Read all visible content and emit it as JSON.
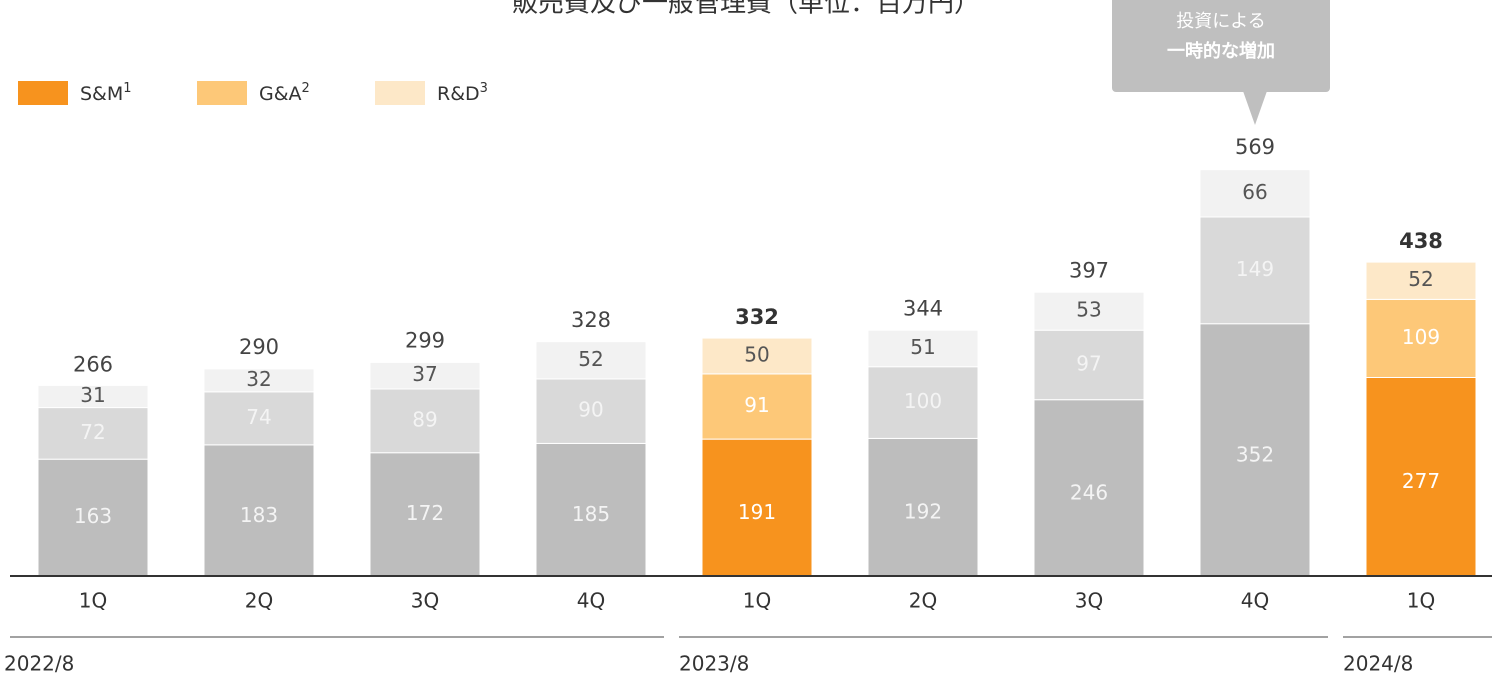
{
  "chart_data": {
    "type": "stacked_bar",
    "title": "販売費及び一般管理費（単位：百万円）",
    "categories": [
      "1Q",
      "2Q",
      "3Q",
      "4Q",
      "1Q",
      "2Q",
      "3Q",
      "4Q",
      "1Q"
    ],
    "groups": [
      {
        "label": "2022/8",
        "start": 0,
        "end": 3
      },
      {
        "label": "2023/8",
        "start": 4,
        "end": 7
      },
      {
        "label": "2024/8",
        "start": 8,
        "end": 8
      }
    ],
    "series": [
      {
        "name": "S&M",
        "note_mark": "1",
        "color": "#f7931e",
        "muted_color": "#bdbdbd",
        "values": [
          163,
          183,
          172,
          185,
          191,
          192,
          246,
          352,
          277
        ]
      },
      {
        "name": "G&A",
        "note_mark": "2",
        "color": "#fdc878",
        "muted_color": "#d9d9d9",
        "values": [
          72,
          74,
          89,
          90,
          91,
          100,
          97,
          149,
          109
        ]
      },
      {
        "name": "R&D",
        "note_mark": "3",
        "color": "#fde8c8",
        "muted_color": "#f2f2f2",
        "values": [
          31,
          32,
          37,
          52,
          50,
          51,
          53,
          66,
          52
        ]
      }
    ],
    "totals": [
      266,
      290,
      299,
      328,
      332,
      344,
      397,
      569,
      438
    ],
    "highlight": [
      4,
      8
    ],
    "ylim": [
      0,
      600
    ],
    "annotation": {
      "index": 7,
      "lines": [
        "投資による",
        "一時的な増加"
      ]
    }
  }
}
